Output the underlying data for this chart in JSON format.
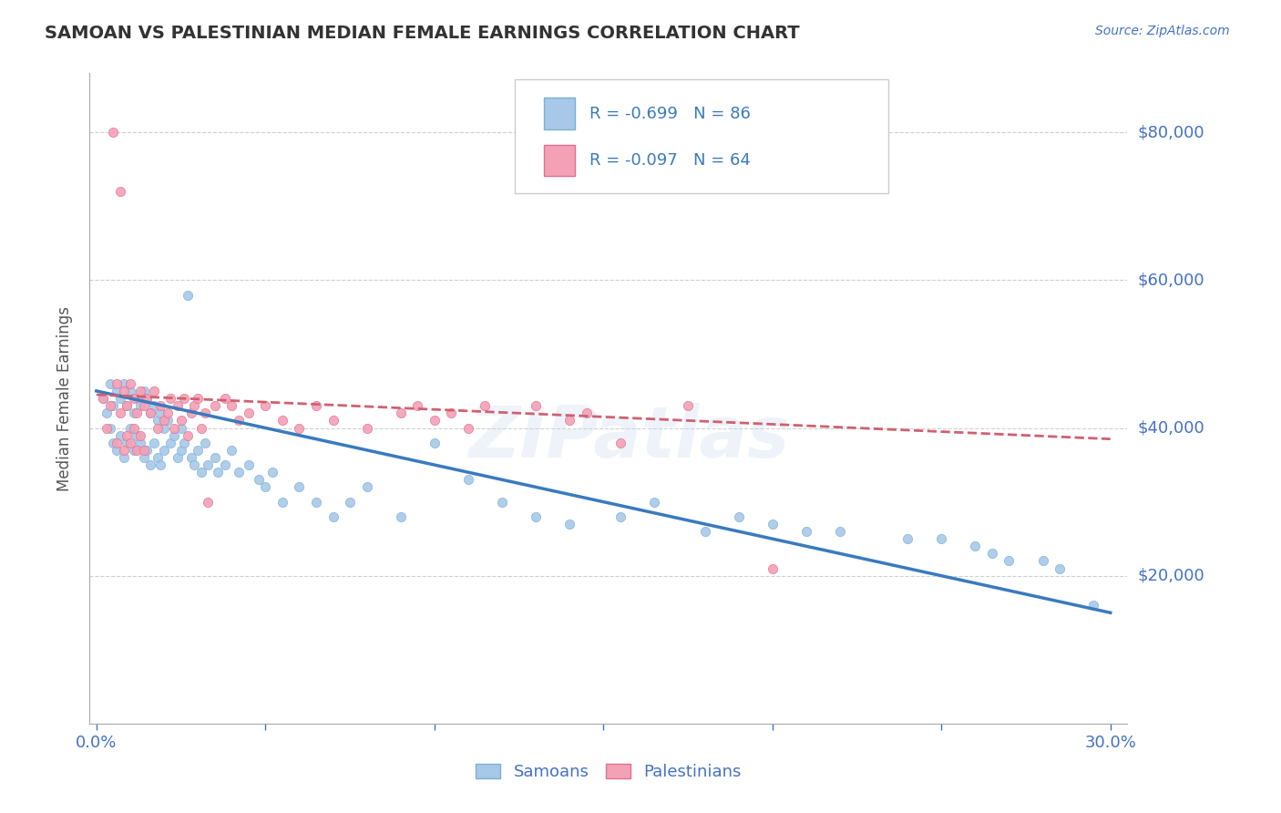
{
  "title": "SAMOAN VS PALESTINIAN MEDIAN FEMALE EARNINGS CORRELATION CHART",
  "source_text": "Source: ZipAtlas.com",
  "ylabel": "Median Female Earnings",
  "xlim": [
    -0.002,
    0.305
  ],
  "ylim": [
    0,
    88000
  ],
  "xtick_vals": [
    0.0,
    0.05,
    0.1,
    0.15,
    0.2,
    0.25,
    0.3
  ],
  "xticklabels": [
    "0.0%",
    "",
    "",
    "",
    "",
    "",
    "30.0%"
  ],
  "ytick_values": [
    0,
    20000,
    40000,
    60000,
    80000
  ],
  "ytick_labels": [
    "",
    "$20,000",
    "$40,000",
    "$60,000",
    "$80,000"
  ],
  "background_color": "#ffffff",
  "grid_color": "#d0d0d0",
  "tick_color": "#4472c4",
  "title_color": "#333333",
  "legend_label_blue": "Samoans",
  "legend_label_pink": "Palestinians",
  "watermark": "ZIPatlas",
  "blue_line_intercept": 45000,
  "blue_line_slope": -100000,
  "pink_line_intercept": 44500,
  "pink_line_slope": -20000,
  "blue_scatter_x": [
    0.002,
    0.003,
    0.004,
    0.004,
    0.005,
    0.005,
    0.006,
    0.006,
    0.007,
    0.007,
    0.008,
    0.008,
    0.009,
    0.009,
    0.01,
    0.01,
    0.011,
    0.011,
    0.012,
    0.012,
    0.013,
    0.013,
    0.014,
    0.014,
    0.015,
    0.015,
    0.016,
    0.016,
    0.017,
    0.017,
    0.018,
    0.018,
    0.019,
    0.019,
    0.02,
    0.02,
    0.021,
    0.022,
    0.023,
    0.024,
    0.025,
    0.025,
    0.026,
    0.027,
    0.028,
    0.029,
    0.03,
    0.031,
    0.032,
    0.033,
    0.035,
    0.036,
    0.038,
    0.04,
    0.042,
    0.045,
    0.048,
    0.05,
    0.052,
    0.055,
    0.06,
    0.065,
    0.07,
    0.075,
    0.08,
    0.09,
    0.1,
    0.11,
    0.12,
    0.13,
    0.14,
    0.155,
    0.165,
    0.18,
    0.19,
    0.2,
    0.21,
    0.22,
    0.24,
    0.25,
    0.26,
    0.265,
    0.27,
    0.28,
    0.285,
    0.295
  ],
  "blue_scatter_y": [
    44000,
    42000,
    46000,
    40000,
    43000,
    38000,
    45000,
    37000,
    44000,
    39000,
    46000,
    36000,
    43000,
    38000,
    45000,
    40000,
    42000,
    37000,
    44000,
    39000,
    43000,
    38000,
    45000,
    36000,
    44000,
    37000,
    42000,
    35000,
    43000,
    38000,
    41000,
    36000,
    42000,
    35000,
    40000,
    37000,
    41000,
    38000,
    39000,
    36000,
    40000,
    37000,
    38000,
    58000,
    36000,
    35000,
    37000,
    34000,
    38000,
    35000,
    36000,
    34000,
    35000,
    37000,
    34000,
    35000,
    33000,
    32000,
    34000,
    30000,
    32000,
    30000,
    28000,
    30000,
    32000,
    28000,
    38000,
    33000,
    30000,
    28000,
    27000,
    28000,
    30000,
    26000,
    28000,
    27000,
    26000,
    26000,
    25000,
    25000,
    24000,
    23000,
    22000,
    22000,
    21000,
    16000
  ],
  "pink_scatter_x": [
    0.002,
    0.003,
    0.004,
    0.005,
    0.006,
    0.006,
    0.007,
    0.007,
    0.008,
    0.008,
    0.009,
    0.009,
    0.01,
    0.01,
    0.011,
    0.011,
    0.012,
    0.012,
    0.013,
    0.013,
    0.014,
    0.014,
    0.015,
    0.016,
    0.017,
    0.018,
    0.019,
    0.02,
    0.021,
    0.022,
    0.023,
    0.024,
    0.025,
    0.026,
    0.027,
    0.028,
    0.029,
    0.03,
    0.031,
    0.032,
    0.033,
    0.035,
    0.038,
    0.04,
    0.042,
    0.045,
    0.05,
    0.055,
    0.06,
    0.065,
    0.07,
    0.08,
    0.09,
    0.095,
    0.1,
    0.105,
    0.11,
    0.115,
    0.13,
    0.14,
    0.145,
    0.155,
    0.175,
    0.2
  ],
  "pink_scatter_y": [
    44000,
    40000,
    43000,
    80000,
    46000,
    38000,
    72000,
    42000,
    45000,
    37000,
    43000,
    39000,
    46000,
    38000,
    44000,
    40000,
    42000,
    37000,
    45000,
    39000,
    43000,
    37000,
    44000,
    42000,
    45000,
    40000,
    43000,
    41000,
    42000,
    44000,
    40000,
    43000,
    41000,
    44000,
    39000,
    42000,
    43000,
    44000,
    40000,
    42000,
    30000,
    43000,
    44000,
    43000,
    41000,
    42000,
    43000,
    41000,
    40000,
    43000,
    41000,
    40000,
    42000,
    43000,
    41000,
    42000,
    40000,
    43000,
    43000,
    41000,
    42000,
    38000,
    43000,
    21000
  ]
}
